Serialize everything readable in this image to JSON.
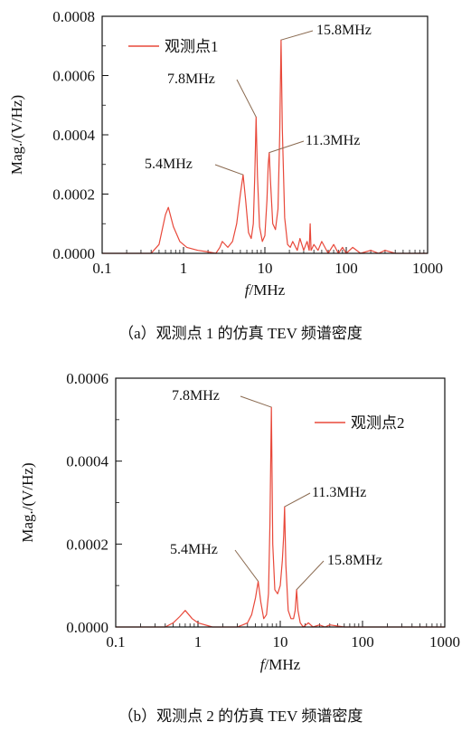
{
  "colors": {
    "series": "#e8483a",
    "leader": "#8a6a50",
    "axis": "#111111"
  },
  "chart_data": [
    {
      "type": "line",
      "caption": "（a）观测点 1 的仿真 TEV 频谱密度",
      "xlabel_italic": "f",
      "xlabel_rest": "/MHz",
      "ylabel": "Mag./(V/Hz)",
      "xscale": "log",
      "xlim": [
        0.1,
        1000
      ],
      "ylim": [
        0,
        0.0008
      ],
      "xticks": [
        0.1,
        1,
        10,
        100,
        1000
      ],
      "xtick_labels": [
        "0.1",
        "1",
        "10",
        "100",
        "1000"
      ],
      "yticks": [
        0,
        0.0002,
        0.0004,
        0.0006,
        0.0008
      ],
      "ytick_labels": [
        "0.0000",
        "0.0002",
        "0.0004",
        "0.0006",
        "0.0008"
      ],
      "legend": "top-left",
      "series": [
        {
          "name": "观测点1",
          "x": [
            0.1,
            0.4,
            0.5,
            0.6,
            0.65,
            0.75,
            0.9,
            1.1,
            1.5,
            2.0,
            2.5,
            2.8,
            3.0,
            3.5,
            4.0,
            4.5,
            5.0,
            5.4,
            5.8,
            6.3,
            6.8,
            7.2,
            7.5,
            7.8,
            8.1,
            8.6,
            9.3,
            10.0,
            10.6,
            11.0,
            11.3,
            11.7,
            12.5,
            13.5,
            14.5,
            15.2,
            15.8,
            16.4,
            17.5,
            19.0,
            20.5,
            22.0,
            25.0,
            27.0,
            30.0,
            33.0,
            35.0,
            36.0,
            37.0,
            40.0,
            45.0,
            50.0,
            60.0,
            70.0,
            80.0,
            90.0,
            100.0,
            120.0,
            150.0,
            200.0,
            250.0,
            300.0,
            400.0,
            1000.0
          ],
          "y": [
            0.0,
            0.0,
            3e-05,
            0.00013,
            0.000155,
            9e-05,
            4e-05,
            2e-05,
            1e-05,
            5e-06,
            0.0,
            2e-05,
            4e-05,
            2e-05,
            4e-05,
            0.0001,
            0.0002,
            0.000265,
            0.00018,
            7e-05,
            5e-05,
            0.0001,
            0.00026,
            0.00046,
            0.00026,
            9e-05,
            4e-05,
            6e-05,
            0.00018,
            0.0003,
            0.00034,
            0.00025,
            0.0001,
            8e-05,
            0.00015,
            0.0004,
            0.00072,
            0.00042,
            0.00012,
            3e-05,
            2e-05,
            4e-05,
            1e-05,
            5e-05,
            1e-05,
            4e-05,
            1e-05,
            0.0001,
            1e-05,
            3e-05,
            1e-05,
            4e-05,
            0.0,
            3e-05,
            0.0,
            2e-05,
            0.0,
            2e-05,
            0.0,
            1e-05,
            0.0,
            1e-05,
            0.0,
            0.0
          ]
        }
      ],
      "annotations": [
        {
          "text": "15.8MHz",
          "x": 15.8,
          "y": 0.00072
        },
        {
          "text": "7.8MHz",
          "x": 7.8,
          "y": 0.00046
        },
        {
          "text": "11.3MHz",
          "x": 11.3,
          "y": 0.00034
        },
        {
          "text": "5.4MHz",
          "x": 5.4,
          "y": 0.000265
        }
      ]
    },
    {
      "type": "line",
      "caption": "（b）观测点 2 的仿真 TEV 频谱密度",
      "xlabel_italic": "f",
      "xlabel_rest": "/MHz",
      "ylabel": "Mag./(V/Hz)",
      "xscale": "log",
      "xlim": [
        0.1,
        1000
      ],
      "ylim": [
        0,
        0.0006
      ],
      "xticks": [
        0.1,
        1,
        10,
        100,
        1000
      ],
      "xtick_labels": [
        "0.1",
        "1",
        "10",
        "100",
        "1000"
      ],
      "yticks": [
        0,
        0.0002,
        0.0004,
        0.0006
      ],
      "ytick_labels": [
        "0.0000",
        "0.0002",
        "0.0004",
        "0.0006"
      ],
      "legend": "top-right",
      "series": [
        {
          "name": "观测点2",
          "x": [
            0.1,
            0.4,
            0.5,
            0.6,
            0.7,
            0.85,
            1.0,
            1.5,
            2.0,
            3.0,
            3.5,
            4.0,
            4.5,
            5.0,
            5.4,
            5.8,
            6.3,
            6.8,
            7.2,
            7.5,
            7.8,
            8.1,
            8.6,
            9.3,
            10.0,
            10.6,
            11.0,
            11.3,
            11.7,
            12.5,
            13.5,
            14.5,
            15.2,
            15.8,
            16.4,
            17.5,
            19.0,
            22.0,
            25.0,
            30.0,
            35.0,
            40.0,
            60.0,
            100.0,
            200.0,
            1000.0
          ],
          "y": [
            0.0,
            0.0,
            1e-05,
            2.5e-05,
            4e-05,
            2e-05,
            1e-05,
            0.0,
            0.0,
            0.0,
            5e-06,
            1e-05,
            3e-05,
            7e-05,
            0.00011,
            6e-05,
            2e-05,
            3e-05,
            8e-05,
            0.00025,
            0.00053,
            0.0002,
            9e-05,
            8e-05,
            0.0001,
            0.00016,
            0.00022,
            0.00029,
            0.00015,
            4e-05,
            2e-05,
            2e-05,
            4e-05,
            9e-05,
            4e-05,
            1e-05,
            0.0,
            1e-05,
            0.0,
            5e-06,
            0.0,
            5e-06,
            0.0,
            0.0,
            0.0,
            0.0
          ]
        }
      ],
      "annotations": [
        {
          "text": "7.8MHz",
          "x": 7.8,
          "y": 0.00053
        },
        {
          "text": "11.3MHz",
          "x": 11.3,
          "y": 0.00029
        },
        {
          "text": "5.4MHz",
          "x": 5.4,
          "y": 0.00011
        },
        {
          "text": "15.8MHz",
          "x": 15.8,
          "y": 9e-05
        }
      ]
    }
  ]
}
